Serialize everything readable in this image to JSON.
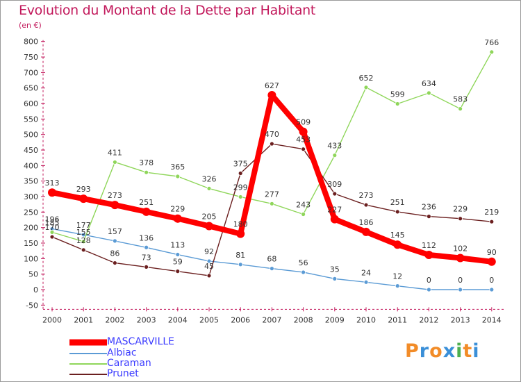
{
  "title": "Evolution du Montant de la Dette par Habitant",
  "unit": "(en €)",
  "logo": {
    "letters": [
      "P",
      "r",
      "o",
      "x",
      "i",
      "t",
      "i"
    ],
    "colors": [
      "#f28c28",
      "#3a8fd8",
      "#f28c28",
      "#3a8fd8",
      "#4caf50",
      "#f28c28",
      "#3a8fd8"
    ]
  },
  "chart_data": {
    "type": "line",
    "x": [
      "2000",
      "2001",
      "2002",
      "2003",
      "2004",
      "2005",
      "2006",
      "2007",
      "2008",
      "2009",
      "2010",
      "2011",
      "2012",
      "2013",
      "2014"
    ],
    "ylim": [
      -50,
      800
    ],
    "yticks": [
      "-50",
      "0",
      "50",
      "100",
      "150",
      "200",
      "250",
      "300",
      "350",
      "400",
      "450",
      "500",
      "550",
      "600",
      "650",
      "700",
      "750",
      "800"
    ],
    "grid": false,
    "legend_position": "bottom-left",
    "series": [
      {
        "name": "MASCARVILLE",
        "color": "#ff0000",
        "values": [
          313,
          293,
          273,
          251,
          229,
          205,
          180,
          627,
          509,
          227,
          186,
          145,
          112,
          102,
          90
        ]
      },
      {
        "name": "Albiac",
        "color": "#5b9bd5",
        "values": [
          196,
          177,
          157,
          136,
          113,
          92,
          81,
          68,
          56,
          35,
          24,
          12,
          0,
          0,
          0
        ]
      },
      {
        "name": "Caraman",
        "color": "#8fd65a",
        "values": [
          185,
          155,
          411,
          378,
          365,
          326,
          299,
          277,
          243,
          433,
          652,
          599,
          634,
          583,
          766
        ]
      },
      {
        "name": "Prunet",
        "color": "#6b1f1f",
        "values": [
          170,
          128,
          86,
          73,
          59,
          45,
          375,
          470,
          453,
          309,
          273,
          251,
          236,
          229,
          219
        ]
      }
    ]
  }
}
